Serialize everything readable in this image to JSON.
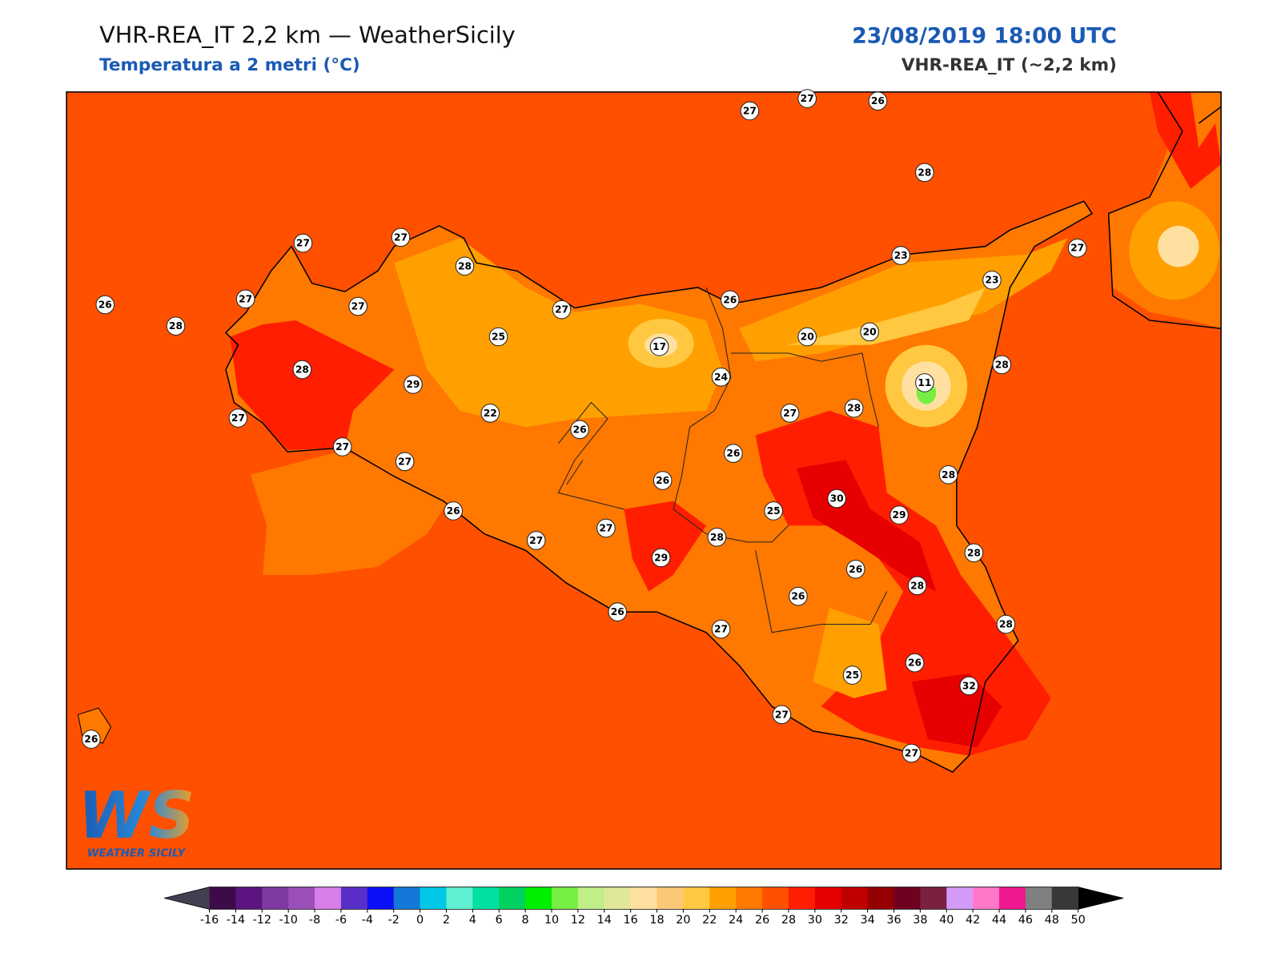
{
  "header": {
    "title": "VHR-REA_IT 2,2 km — WeatherSicily",
    "subtitle": "Temperatura a 2 metri (°C)",
    "valid_time": "23/08/2019 18:00 UTC",
    "model": "VHR-REA_IT (~2,2 km)"
  },
  "map": {
    "station_values": [
      27,
      27,
      26,
      28,
      27,
      27,
      28,
      23,
      27,
      23,
      26,
      27,
      27,
      27,
      26,
      28,
      25,
      17,
      20,
      20,
      28,
      28,
      29,
      24,
      11,
      27,
      22,
      27,
      28,
      26,
      27,
      27,
      26,
      26,
      28,
      30,
      26,
      25,
      29,
      27,
      27,
      28,
      28,
      29,
      26,
      28,
      26,
      26,
      27,
      28,
      26,
      25,
      32,
      27,
      27,
      26
    ]
  },
  "logo": {
    "mark": "WS",
    "text": "WEATHER SICILY"
  },
  "colorbar": {
    "ticks": [
      -16,
      -14,
      -12,
      -10,
      -8,
      -6,
      -4,
      -2,
      0,
      2,
      4,
      6,
      8,
      10,
      12,
      14,
      16,
      18,
      20,
      22,
      24,
      26,
      28,
      30,
      32,
      34,
      36,
      38,
      40,
      42,
      44,
      46,
      48,
      50
    ],
    "colors": [
      "#3d0a4a",
      "#5c1480",
      "#7e3aa0",
      "#9b4fb8",
      "#d87ee8",
      "#5a2ec8",
      "#0a10f5",
      "#1478d8",
      "#00c8e6",
      "#5ef0d0",
      "#00e0a0",
      "#00d060",
      "#00ee00",
      "#77ee44",
      "#c0ee88",
      "#e0e898",
      "#ffe0a0",
      "#fcc878",
      "#ffc840",
      "#ffa000",
      "#ff7800",
      "#ff5000",
      "#ff1e00",
      "#e60000",
      "#c00000",
      "#960000",
      "#700020",
      "#7a2040",
      "#d49af8",
      "#ff78c8",
      "#f01890",
      "#808080",
      "#383838"
    ],
    "under_color": "#404050",
    "over_color": "#000000"
  }
}
